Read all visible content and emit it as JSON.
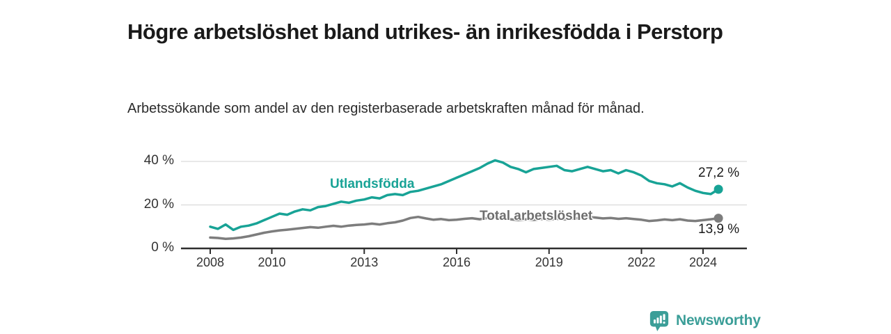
{
  "header": {
    "title": "Högre arbetslöshet bland utrikes- än inrikesfödda i Perstorp",
    "subtitle": "Arbetssökande som andel av den registerbaserade arbetskraften månad för månad."
  },
  "chart": {
    "series_labels": {
      "foreign_born": "Utlandsfödda",
      "total": "Total arbetslöshet"
    },
    "end_labels": {
      "foreign_born": "27,2 %",
      "total": "13,9 %"
    }
  },
  "chart_data": {
    "type": "line",
    "title": "Högre arbetslöshet bland utrikes- än inrikesfödda i Perstorp",
    "subtitle": "Arbetssökande som andel av den registerbaserade arbetskraften månad för månad.",
    "x_unit": "decimal_year_quarterly",
    "x_start": 2008.0,
    "x_step_years": 0.25,
    "x_ticks": [
      2008,
      2010,
      2013,
      2016,
      2019,
      2022,
      2024
    ],
    "y_ticks": [
      {
        "value": 0,
        "label": "0 %"
      },
      {
        "value": 20,
        "label": "20 %"
      },
      {
        "value": 40,
        "label": "40 %"
      }
    ],
    "ylim": [
      0,
      42
    ],
    "grid": "horizontal",
    "legend": "inline-labels",
    "series": [
      {
        "name": "Utlandsfödda",
        "color": "#18a396",
        "end_value": 27.2,
        "end_value_label": "27,2 %",
        "values": [
          10.0,
          9.0,
          11.0,
          8.5,
          10.0,
          10.5,
          11.5,
          13.0,
          14.5,
          16.0,
          15.5,
          17.0,
          18.0,
          17.5,
          19.0,
          19.5,
          20.5,
          21.5,
          21.0,
          22.0,
          22.5,
          23.5,
          23.0,
          24.5,
          25.0,
          24.5,
          26.0,
          26.5,
          27.5,
          28.5,
          29.5,
          31.0,
          32.5,
          34.0,
          35.5,
          37.0,
          39.0,
          40.5,
          39.5,
          37.5,
          36.5,
          35.0,
          36.5,
          37.0,
          37.5,
          38.0,
          36.0,
          35.5,
          36.5,
          37.5,
          36.5,
          35.5,
          36.0,
          34.5,
          36.0,
          35.0,
          33.5,
          31.0,
          30.0,
          29.5,
          28.5,
          30.0,
          28.0,
          26.5,
          25.5,
          25.0,
          27.2
        ]
      },
      {
        "name": "Total arbetslöshet",
        "color": "#7d7d7d",
        "end_value": 13.9,
        "end_value_label": "13,9 %",
        "values": [
          5.0,
          4.8,
          4.4,
          4.6,
          5.0,
          5.6,
          6.4,
          7.2,
          7.8,
          8.3,
          8.6,
          9.0,
          9.4,
          9.8,
          9.5,
          10.0,
          10.4,
          10.0,
          10.5,
          10.8,
          11.0,
          11.4,
          11.0,
          11.6,
          12.0,
          12.8,
          14.0,
          14.5,
          13.8,
          13.2,
          13.5,
          13.0,
          13.2,
          13.6,
          13.9,
          13.4,
          14.0,
          14.3,
          13.8,
          13.4,
          13.0,
          13.4,
          13.1,
          13.5,
          13.2,
          13.6,
          13.3,
          13.7,
          14.0,
          14.5,
          14.2,
          13.8,
          14.0,
          13.6,
          13.9,
          13.5,
          13.2,
          12.6,
          12.9,
          13.3,
          13.0,
          13.4,
          12.8,
          12.6,
          13.0,
          13.4,
          13.9
        ]
      }
    ]
  },
  "footer": {
    "brand": "Newsworthy"
  },
  "colors": {
    "accent_teal": "#18a396",
    "series_gray": "#7d7d7d",
    "logo_teal": "#3b9e98",
    "axis": "#2e2e2e",
    "grid": "#d9d9d9",
    "title_text": "#1a1a1a",
    "body_text": "#2b2b2b"
  }
}
